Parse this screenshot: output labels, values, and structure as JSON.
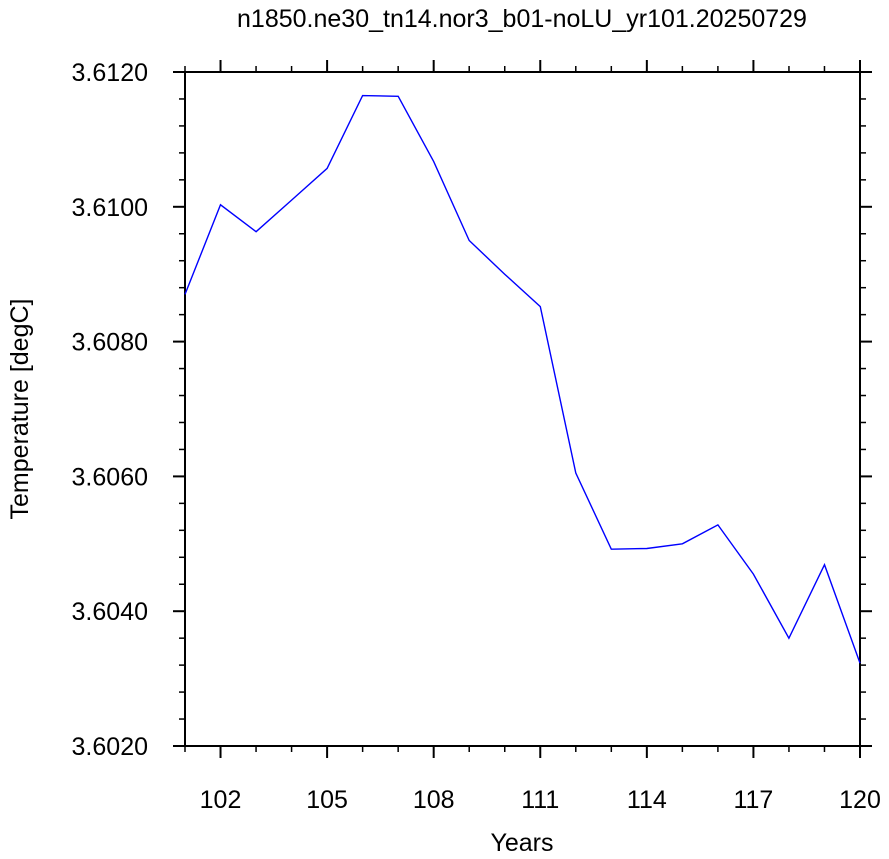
{
  "chart_data": {
    "type": "line",
    "title": "n1850.ne30_tn14.nor3_b01-noLU_yr101.20250729",
    "xlabel": "Years",
    "ylabel": "Temperature [degC]",
    "xlim": [
      101,
      120
    ],
    "ylim": [
      3.602,
      3.612
    ],
    "x_ticks": [
      102,
      105,
      108,
      111,
      114,
      117,
      120
    ],
    "x_tick_labels": [
      "102",
      "105",
      "108",
      "111",
      "114",
      "117",
      "120"
    ],
    "y_ticks": [
      3.602,
      3.604,
      3.606,
      3.608,
      3.61,
      3.612
    ],
    "y_tick_labels": [
      "3.6020",
      "3.6040",
      "3.6060",
      "3.6080",
      "3.6100",
      "3.6120"
    ],
    "grid": false,
    "series": [
      {
        "color": "#0000ff",
        "x": [
          101,
          102,
          103,
          104,
          105,
          106,
          107,
          108,
          109,
          110,
          111,
          112,
          113,
          114,
          115,
          116,
          117,
          118,
          119,
          120
        ],
        "y": [
          3.6087,
          3.61003,
          3.60963,
          3.6101,
          3.61057,
          3.61165,
          3.61164,
          3.61067,
          3.6095,
          3.609,
          3.60852,
          3.60605,
          3.60492,
          3.60493,
          3.605,
          3.60528,
          3.60455,
          3.6036,
          3.60469,
          3.60323
        ]
      }
    ]
  }
}
